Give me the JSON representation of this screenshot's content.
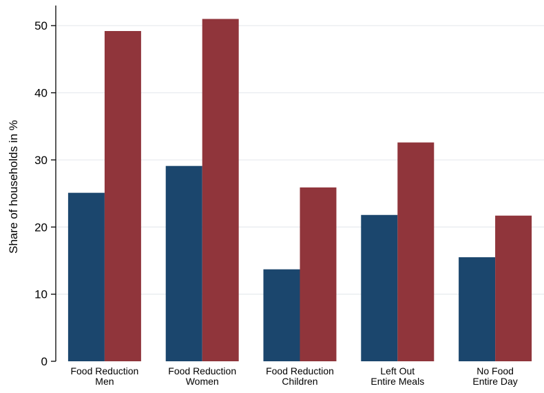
{
  "chart_data": {
    "type": "bar",
    "title": "",
    "xlabel": "",
    "ylabel": "Share of households in %",
    "ylim": [
      0,
      53
    ],
    "yticks": [
      0,
      10,
      20,
      30,
      40,
      50
    ],
    "grid": true,
    "legend": "none",
    "categories": [
      [
        "Food Reduction",
        "Men"
      ],
      [
        "Food Reduction",
        "Women"
      ],
      [
        "Food Reduction",
        "Children"
      ],
      [
        "Left Out",
        "Entire Meals"
      ],
      [
        "No Food",
        "Entire Day"
      ]
    ],
    "series": [
      {
        "color": "#1b466d",
        "values": [
          25.1,
          29.1,
          13.7,
          21.8,
          15.5
        ]
      },
      {
        "color": "#90353b",
        "values": [
          49.2,
          51.0,
          25.9,
          32.6,
          21.7
        ]
      }
    ]
  }
}
